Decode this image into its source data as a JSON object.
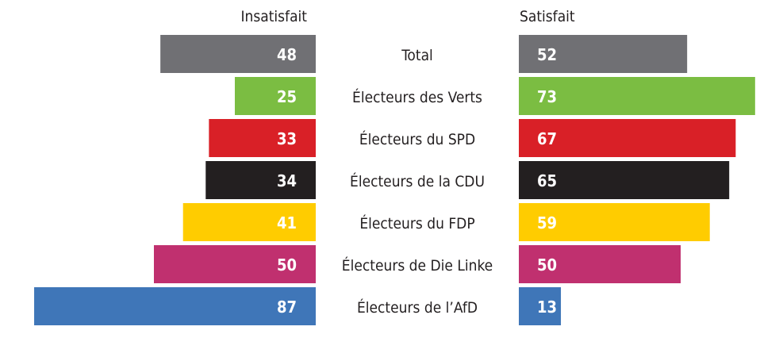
{
  "chart_data": {
    "type": "bar",
    "orientation": "horizontal-diverging",
    "categories": [
      "Total",
      "Électeurs des Verts",
      "Électeurs du SPD",
      "Électeurs de la CDU",
      "Électeurs du FDP",
      "Électeurs de Die Linke",
      "Électeurs de l’AfD"
    ],
    "series": [
      {
        "name": "Insatisfait",
        "values": [
          48,
          25,
          33,
          34,
          41,
          50,
          87
        ]
      },
      {
        "name": "Satisfait",
        "values": [
          52,
          73,
          67,
          65,
          59,
          50,
          13
        ]
      }
    ],
    "colors": [
      "#707074",
      "#7bbd42",
      "#d92027",
      "#231f20",
      "#ffcc00",
      "#c0306f",
      "#3f76b8"
    ],
    "xlim": [
      0,
      100
    ],
    "grid": false,
    "legend": "top"
  }
}
